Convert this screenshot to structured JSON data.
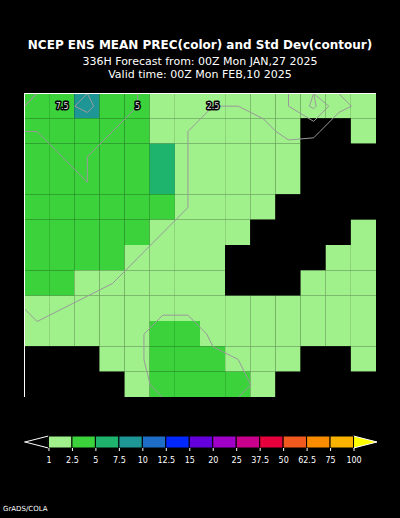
{
  "chart_data": {
    "type": "heatmap",
    "title": "NCEP ENS MEAN PREC(color) and Std Dev(contour)",
    "subtitle": [
      "336H Forecast from: 00Z Mon JAN,27 2025",
      "Valid time: 00Z Mon FEB,10 2025"
    ],
    "credit": "GrADS/COLA",
    "tick_labels": false,
    "values": [
      [
        3,
        3,
        8,
        4,
        3,
        2,
        1.5,
        1.5,
        1.5,
        1.5,
        1.5,
        2,
        1.5,
        1.5
      ],
      [
        3.5,
        4,
        4,
        3.5,
        3,
        2,
        1.5,
        1.5,
        1.5,
        1.5,
        1.2,
        0.5,
        0.5,
        1.2
      ],
      [
        4,
        4,
        4,
        3.5,
        3,
        6,
        2,
        1.5,
        1.5,
        1.5,
        1.2,
        0.5,
        0.3,
        0.3
      ],
      [
        4,
        4,
        4,
        4,
        3,
        6,
        2,
        1.5,
        1.5,
        1.2,
        1.2,
        0.5,
        0.3,
        0.3
      ],
      [
        3.5,
        3.5,
        3.5,
        3.5,
        3,
        3,
        2,
        1.5,
        1.2,
        1,
        0.5,
        0.3,
        0.3,
        0.3
      ],
      [
        3.5,
        3.5,
        3,
        3,
        3,
        2,
        1.5,
        1.5,
        1.2,
        0.5,
        0.3,
        0.3,
        0.5,
        1.2
      ],
      [
        3,
        3,
        3,
        2.5,
        2,
        1.5,
        1.5,
        1.5,
        0.5,
        0.3,
        0.3,
        0.5,
        1.2,
        1.5
      ],
      [
        3,
        2.5,
        2,
        1.5,
        1.5,
        1.5,
        1.5,
        1.5,
        0.5,
        0.3,
        0.5,
        1.2,
        1.5,
        1.5
      ],
      [
        2,
        1.5,
        1.5,
        1.5,
        1.5,
        1.5,
        1.5,
        1.5,
        1.2,
        1.2,
        1.2,
        1.5,
        1.5,
        1.5
      ],
      [
        1.5,
        1.5,
        1.5,
        1.5,
        1.5,
        3,
        3,
        1.5,
        1.5,
        1.5,
        1.5,
        1.5,
        1.5,
        1.5
      ],
      [
        0.5,
        0.5,
        0.5,
        1.5,
        1.5,
        3,
        3,
        3,
        2,
        1.5,
        1.2,
        0.5,
        0.3,
        1.2
      ],
      [
        0.3,
        0.3,
        0.3,
        0.5,
        1.5,
        3,
        3,
        3,
        3,
        1.5,
        0.5,
        0.3,
        0.3,
        0.3
      ]
    ],
    "std_dev": [
      [
        6,
        7,
        8,
        6,
        5,
        4,
        3,
        2.5,
        2.5,
        3,
        5,
        8,
        3,
        2
      ],
      [
        5,
        5,
        6,
        5,
        4,
        3,
        2.5,
        2,
        2,
        2,
        3,
        3,
        1,
        1
      ],
      [
        4,
        5,
        5,
        4,
        4,
        4,
        2.5,
        2,
        2,
        2,
        1.5,
        1,
        0.5,
        0.5
      ],
      [
        4,
        4,
        5,
        4,
        3.5,
        4,
        2.5,
        2,
        2,
        1.5,
        1,
        0.5,
        0.5,
        0.5
      ],
      [
        4,
        4,
        4,
        4,
        3,
        3,
        2.5,
        2,
        1.5,
        1,
        0.5,
        0.5,
        0.5,
        0.5
      ],
      [
        5,
        4,
        4,
        3.5,
        3,
        2.5,
        2,
        2,
        1.5,
        1,
        0.5,
        0.5,
        1,
        1.5
      ],
      [
        4,
        4,
        3.5,
        3,
        2.5,
        2,
        2,
        2,
        1,
        0.5,
        0.5,
        1,
        1.5,
        2
      ],
      [
        4,
        3.5,
        3,
        2.5,
        2,
        2,
        2,
        2,
        1,
        0.5,
        1,
        1.5,
        2,
        2
      ],
      [
        3,
        2.5,
        2,
        2,
        2,
        2,
        2,
        2,
        1.5,
        1.5,
        1.5,
        2,
        2,
        2
      ],
      [
        2,
        2,
        2,
        2,
        2,
        4,
        4,
        2,
        2,
        2,
        2,
        2,
        2,
        2
      ],
      [
        1,
        1,
        1,
        2,
        2,
        4,
        4,
        3,
        2.5,
        2,
        1.5,
        1,
        0.5,
        1
      ],
      [
        0.5,
        0.5,
        1,
        1,
        2,
        3,
        3,
        3,
        3,
        2,
        1,
        0.5,
        0.5,
        0.5
      ]
    ],
    "std_dev_contours": [
      2.5,
      5,
      7.5
    ],
    "colorbar": {
      "levels": [
        1,
        2.5,
        5,
        7.5,
        10,
        12.5,
        15,
        20,
        25,
        37.5,
        50,
        62.5,
        75,
        100
      ],
      "colors": [
        "#000000",
        "#a0f08c",
        "#3cd23c",
        "#1eb46e",
        "#1e9696",
        "#1e6ec8",
        "#0028ff",
        "#6400dc",
        "#a000c8",
        "#c8008c",
        "#e6003c",
        "#f05a1e",
        "#fa8c00",
        "#fab400",
        "#ffff00"
      ]
    }
  }
}
